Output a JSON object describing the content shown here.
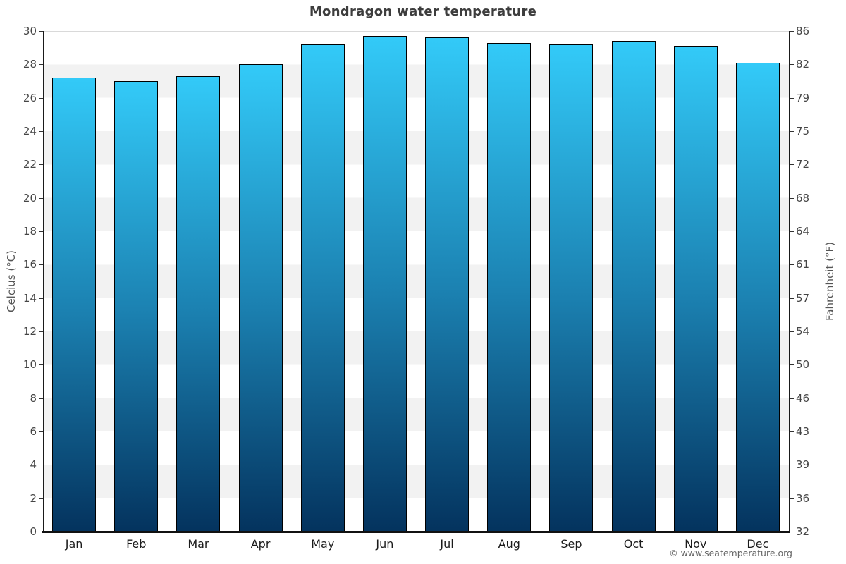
{
  "title": "Mondragon water temperature",
  "footer": {
    "copyright": "© www.seatemperature.org"
  },
  "chart_data": {
    "type": "bar",
    "title": "Mondragon water temperature",
    "categories": [
      "Jan",
      "Feb",
      "Mar",
      "Apr",
      "May",
      "Jun",
      "Jul",
      "Aug",
      "Sep",
      "Oct",
      "Nov",
      "Dec"
    ],
    "values": [
      27.2,
      27.0,
      27.3,
      28.0,
      29.2,
      29.7,
      29.6,
      29.3,
      29.2,
      29.4,
      29.1,
      28.1
    ],
    "unit": "°C",
    "ylabel_left": "Celcius (°C)",
    "ylabel_right": "Fahrenheit (°F)",
    "ylim": [
      0,
      30
    ],
    "tick_step_celsius": 2,
    "celsius_ticks": [
      0,
      2,
      4,
      6,
      8,
      10,
      12,
      14,
      16,
      18,
      20,
      22,
      24,
      26,
      28,
      30
    ],
    "fahrenheit_ticks": [
      32,
      36,
      39,
      43,
      46,
      50,
      54,
      57,
      61,
      64,
      68,
      72,
      75,
      79,
      82,
      86
    ],
    "legend": "none",
    "grid": "alternating 2°C horizontal bands",
    "colors": {
      "bar_gradient_top": "#33caf8",
      "bar_gradient_mid": "#1b80b0",
      "bar_gradient_bottom": "#04335e",
      "bar_border": "#000000",
      "band_light": "#ffffff",
      "band_dark": "#f2f2f2",
      "axis": "#1a1a1a"
    }
  }
}
